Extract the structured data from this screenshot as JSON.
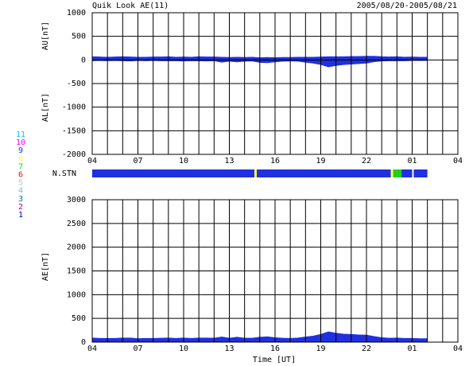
{
  "chart_data": {
    "type": "area",
    "title": "Quik Look AE(11)",
    "subtitle": "2005/08/20-2005/08/21",
    "xlabel": "Time [UT]",
    "xlim": [
      0,
      24
    ],
    "xticks": [
      {
        "value": 0,
        "label": "04"
      },
      {
        "value": 3,
        "label": "07"
      },
      {
        "value": 6,
        "label": "10"
      },
      {
        "value": 9,
        "label": "13"
      },
      {
        "value": 12,
        "label": "16"
      },
      {
        "value": 15,
        "label": "19"
      },
      {
        "value": 18,
        "label": "22"
      },
      {
        "value": 21,
        "label": "01"
      },
      {
        "value": 24,
        "label": "04"
      }
    ],
    "minor_xticks": [
      1,
      2,
      4,
      5,
      7,
      8,
      10,
      11,
      13,
      14,
      16,
      17,
      19,
      20,
      22,
      23
    ],
    "x": [
      0,
      0.5,
      1,
      1.5,
      2,
      2.5,
      3,
      3.5,
      4,
      4.5,
      5,
      5.5,
      6,
      6.5,
      7,
      7.5,
      8,
      8.5,
      9,
      9.5,
      10,
      10.5,
      11,
      11.5,
      12,
      12.5,
      13,
      13.5,
      14,
      14.5,
      15,
      15.5,
      16,
      16.5,
      17,
      17.5,
      18,
      18.5,
      19,
      19.5,
      20,
      20.5,
      21,
      21.5,
      22
    ],
    "panels": [
      {
        "ylabels": [
          "AU[nT]",
          "AL[nT]"
        ],
        "ylim": [
          -2000,
          1000
        ],
        "yticks": [
          -2000,
          -1500,
          -1000,
          -500,
          0,
          500,
          1000
        ],
        "series": [
          {
            "color": "#2030e0",
            "values": [
              70,
              65,
              60,
              65,
              70,
              65,
              60,
              60,
              65,
              65,
              70,
              60,
              65,
              60,
              70,
              65,
              65,
              60,
              55,
              60,
              55,
              60,
              50,
              55,
              50,
              55,
              55,
              60,
              60,
              60,
              65,
              70,
              70,
              70,
              75,
              75,
              80,
              80,
              70,
              65,
              70,
              60,
              65,
              60,
              60
            ]
          },
          {
            "color": "#2030e0",
            "values": [
              -20,
              -15,
              -20,
              -15,
              -20,
              -25,
              -15,
              -20,
              -15,
              -20,
              -20,
              -20,
              -25,
              -20,
              -20,
              -25,
              -20,
              -50,
              -30,
              -45,
              -30,
              -25,
              -55,
              -60,
              -45,
              -30,
              -25,
              -30,
              -50,
              -70,
              -100,
              -150,
              -120,
              -100,
              -90,
              -80,
              -70,
              -40,
              -25,
              -20,
              -20,
              -20,
              -15,
              -15,
              -15
            ]
          }
        ]
      },
      {
        "ylabels": [
          "AE[nT]"
        ],
        "ylim": [
          0,
          3000
        ],
        "yticks": [
          0,
          500,
          1000,
          1500,
          2000,
          2500,
          3000
        ],
        "series": [
          {
            "color": "#2030e0",
            "values": [
              90,
              80,
              80,
              80,
              90,
              90,
              75,
              80,
              80,
              85,
              90,
              80,
              90,
              80,
              90,
              90,
              85,
              110,
              85,
              105,
              85,
              85,
              105,
              115,
              95,
              85,
              80,
              90,
              110,
              130,
              165,
              220,
              190,
              170,
              165,
              155,
              150,
              120,
              95,
              85,
              90,
              80,
              80,
              75,
              75
            ]
          }
        ]
      }
    ],
    "stations": {
      "label": "N.STN",
      "segments": [
        {
          "start": 0,
          "end": 10.65,
          "count": 9
        },
        {
          "start": 10.65,
          "end": 10.8,
          "count": 8
        },
        {
          "start": 10.8,
          "end": 19.6,
          "count": 9
        },
        {
          "start": 19.6,
          "end": 19.75,
          "count": 8
        },
        {
          "start": 19.75,
          "end": 20.3,
          "count": 7
        },
        {
          "start": 20.3,
          "end": 21.0,
          "count": 9
        },
        {
          "start": 21.1,
          "end": 22,
          "count": 9
        }
      ],
      "legend": [
        {
          "value": 11,
          "color": "#00c8ff"
        },
        {
          "value": 10,
          "color": "#ff00ff"
        },
        {
          "value": 9,
          "color": "#2030e0"
        },
        {
          "value": 8,
          "color": "#ffff40"
        },
        {
          "value": 7,
          "color": "#20d020"
        },
        {
          "value": 6,
          "color": "#ff0000"
        },
        {
          "value": 5,
          "color": "#c0c0c0"
        },
        {
          "value": 4,
          "color": "#80c0c0"
        },
        {
          "value": 3,
          "color": "#008080"
        },
        {
          "value": 2,
          "color": "#a000a0"
        },
        {
          "value": 1,
          "color": "#0000c0"
        }
      ]
    }
  }
}
